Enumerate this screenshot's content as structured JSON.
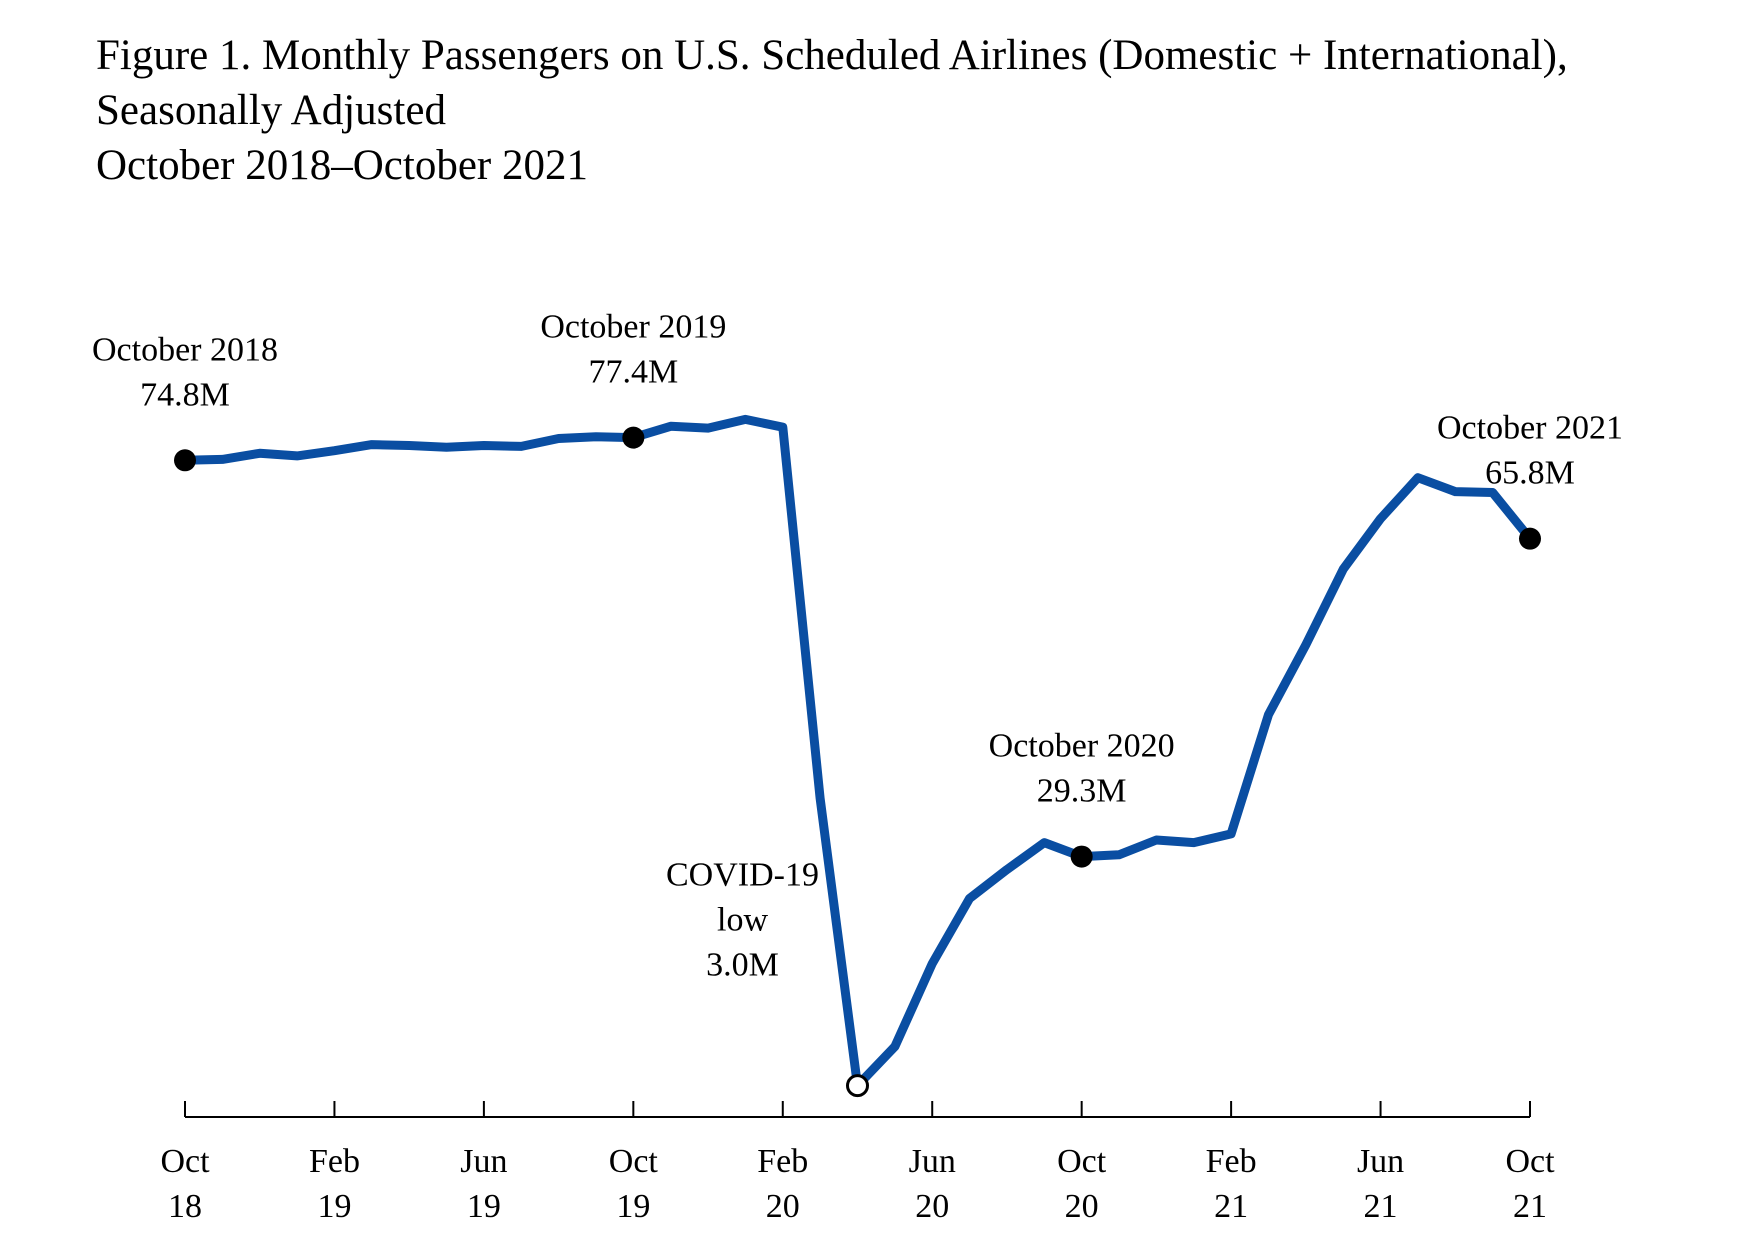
{
  "title_lines": [
    "Figure 1. Monthly Passengers on U.S. Scheduled Airlines (Domestic + International),",
    "Seasonally Adjusted",
    "October 2018–October 2021"
  ],
  "chart_data": {
    "type": "line",
    "title": "Figure 1. Monthly Passengers on U.S. Scheduled Airlines (Domestic + International), Seasonally Adjusted October 2018–October 2021",
    "xlabel": "",
    "ylabel": "",
    "ylim": [
      0,
      85
    ],
    "grid": false,
    "legend": "none",
    "line_color": "#0A4EA2",
    "x": [
      "Oct 18",
      "Nov 18",
      "Dec 18",
      "Jan 19",
      "Feb 19",
      "Mar 19",
      "Apr 19",
      "May 19",
      "Jun 19",
      "Jul 19",
      "Aug 19",
      "Sep 19",
      "Oct 19",
      "Nov 19",
      "Dec 19",
      "Jan 20",
      "Feb 20",
      "Mar 20",
      "Apr 20",
      "May 20",
      "Jun 20",
      "Jul 20",
      "Aug 20",
      "Sep 20",
      "Oct 20",
      "Nov 20",
      "Dec 20",
      "Jan 21",
      "Feb 21",
      "Mar 21",
      "Apr 21",
      "May 21",
      "Jun 21",
      "Jul 21",
      "Aug 21",
      "Sep 21",
      "Oct 21"
    ],
    "series": [
      {
        "values": [
          74.8,
          74.9,
          75.6,
          75.3,
          75.9,
          76.6,
          76.5,
          76.3,
          76.5,
          76.4,
          77.3,
          77.5,
          77.4,
          78.7,
          78.5,
          79.5,
          78.6,
          36.0,
          3.0,
          7.5,
          17.0,
          24.5,
          27.8,
          30.9,
          29.3,
          29.5,
          31.2,
          30.9,
          31.9,
          45.6,
          53.6,
          62.3,
          68.1,
          72.8,
          71.2,
          71.1,
          65.8
        ]
      }
    ],
    "x_ticks": [
      {
        "index": 0,
        "month": "Oct",
        "year": "18"
      },
      {
        "index": 4,
        "month": "Feb",
        "year": "19"
      },
      {
        "index": 8,
        "month": "Jun",
        "year": "19"
      },
      {
        "index": 12,
        "month": "Oct",
        "year": "19"
      },
      {
        "index": 16,
        "month": "Feb",
        "year": "20"
      },
      {
        "index": 20,
        "month": "Jun",
        "year": "20"
      },
      {
        "index": 24,
        "month": "Oct",
        "year": "20"
      },
      {
        "index": 28,
        "month": "Feb",
        "year": "21"
      },
      {
        "index": 32,
        "month": "Jun",
        "year": "21"
      },
      {
        "index": 36,
        "month": "Oct",
        "year": "21"
      }
    ],
    "annotations": [
      {
        "index": 0,
        "lines": [
          "October 2018",
          "74.8M"
        ],
        "marker": "filled"
      },
      {
        "index": 12,
        "lines": [
          "October 2019",
          "77.4M"
        ],
        "marker": "filled"
      },
      {
        "index": 18,
        "lines": [
          "COVID-19",
          "low",
          "3.0M"
        ],
        "marker": "open"
      },
      {
        "index": 24,
        "lines": [
          "October 2020",
          "29.3M"
        ],
        "marker": "filled"
      },
      {
        "index": 36,
        "lines": [
          "October 2021",
          "65.8M"
        ],
        "marker": "filled"
      }
    ]
  }
}
